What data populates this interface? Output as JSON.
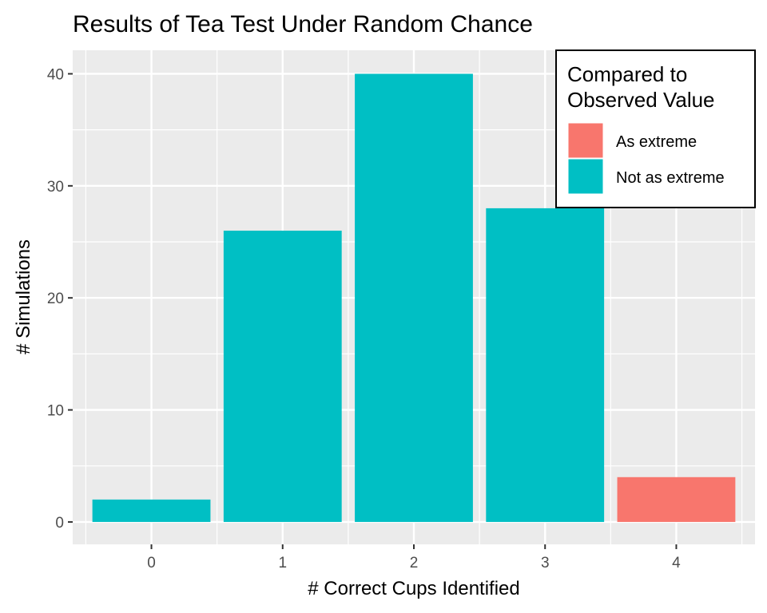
{
  "chart_data": {
    "type": "bar",
    "title": "Results of Tea Test Under Random Chance",
    "xlabel": "# Correct Cups Identified",
    "ylabel": "# Simulations",
    "categories": [
      "0",
      "1",
      "2",
      "3",
      "4"
    ],
    "values": [
      2,
      26,
      40,
      28,
      4
    ],
    "groups": [
      "Not as extreme",
      "Not as extreme",
      "Not as extreme",
      "Not as extreme",
      "As extreme"
    ],
    "yticks": [
      0,
      10,
      20,
      30,
      40
    ],
    "ylim": [
      -2,
      42.1
    ],
    "grid": true,
    "legend": {
      "title_lines": [
        "Compared to",
        "Observed Value"
      ],
      "placement": "top-right",
      "entries": [
        {
          "label": "As extreme",
          "color": "#F8766D"
        },
        {
          "label": "Not as extreme",
          "color": "#00BFC4"
        }
      ]
    }
  }
}
